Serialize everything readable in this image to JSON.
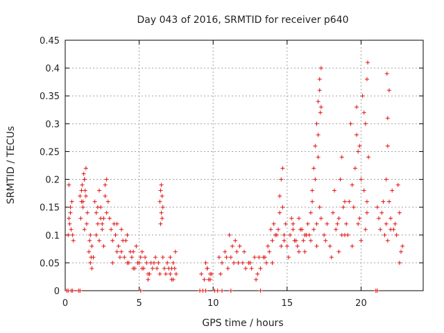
{
  "chart_data": {
    "type": "scatter",
    "title": "Day 043 of 2016, SRMTID for receiver p640",
    "xlabel": "GPS time / hours",
    "ylabel": "SRMTID / TECUs",
    "xlim": [
      0,
      24.2
    ],
    "ylim": [
      0,
      0.45
    ],
    "x_ticks": [
      0,
      5,
      10,
      15,
      20
    ],
    "y_ticks": [
      0,
      0.05,
      0.1,
      0.15,
      0.2,
      0.25,
      0.3,
      0.35,
      0.4,
      0.45
    ],
    "x_tick_labels": [
      "0",
      "5",
      "10",
      "15",
      "20"
    ],
    "y_tick_labels": [
      "0",
      "0.05",
      "0.1",
      "0.15",
      "0.2",
      "0.25",
      "0.3",
      "0.35",
      "0.4",
      "0.45"
    ],
    "grid": true,
    "marker": "+",
    "color": "#e01010",
    "series": [
      {
        "name": "SRMTID",
        "x": [
          0.2,
          0.25,
          0.3,
          0.35,
          0.4,
          0.45,
          0.5,
          0.55,
          0.25,
          0.35,
          1.0,
          1.1,
          1.2,
          1.3,
          1.4,
          1.5,
          1.05,
          1.15,
          1.25,
          1.35,
          1.45,
          1.2,
          1.3,
          1.4,
          1.1,
          1.3,
          1.6,
          1.7,
          1.8,
          1.9,
          1.7,
          1.8,
          1.65,
          1.75,
          2.0,
          2.1,
          2.2,
          2.3,
          2.4,
          2.5,
          2.6,
          2.7,
          2.8,
          2.9,
          2.1,
          2.3,
          2.5,
          2.7,
          2.2,
          2.4,
          2.6,
          2.8,
          3.0,
          3.1,
          3.2,
          3.3,
          3.4,
          3.5,
          3.6,
          3.7,
          3.8,
          3.9,
          3.2,
          3.5,
          3.8,
          4.0,
          4.2,
          4.4,
          4.6,
          4.8,
          4.1,
          4.3,
          4.5,
          4.7,
          4.9,
          4.2,
          4.6,
          5.0,
          5.2,
          5.4,
          5.6,
          5.8,
          5.1,
          5.3,
          5.5,
          5.7,
          5.9,
          5.2,
          5.6,
          6.0,
          6.2,
          6.4,
          6.1,
          6.3,
          6.4,
          6.45,
          6.5,
          6.55,
          6.6,
          6.5,
          6.45,
          6.55,
          6.6,
          6.7,
          6.8,
          6.9,
          7.0,
          7.1,
          7.2,
          7.3,
          7.4,
          7.5,
          7.1,
          7.3,
          7.45,
          7.2,
          9.2,
          9.4,
          9.6,
          9.8,
          9.5,
          9.7,
          9.9,
          9.6,
          9.8,
          10.4,
          10.6,
          10.8,
          11.0,
          11.2,
          11.4,
          11.6,
          11.8,
          12.0,
          12.2,
          10.5,
          10.9,
          11.3,
          11.7,
          12.1,
          11.1,
          11.5,
          12.4,
          12.6,
          12.8,
          13.0,
          13.2,
          12.5,
          12.9,
          13.1,
          13.4,
          13.6,
          13.8,
          14.0,
          14.2,
          13.5,
          13.9,
          14.1,
          14.3,
          13.7,
          14.0,
          14.4,
          14.5,
          14.6,
          14.7,
          14.8,
          14.9,
          14.5,
          14.7,
          14.6,
          14.8,
          15.0,
          15.2,
          15.4,
          15.6,
          15.8,
          16.0,
          16.2,
          16.4,
          15.1,
          15.5,
          15.9,
          16.3,
          15.3,
          15.7,
          16.1,
          15.4,
          15.8,
          16.2,
          16.5,
          16.6,
          16.7,
          16.8,
          16.9,
          17.0,
          17.1,
          17.2,
          17.3,
          16.7,
          16.9,
          17.1,
          17.2,
          17.3,
          17.25,
          17.0,
          17.1,
          17.2,
          16.8,
          17.0,
          17.3,
          16.6,
          17.5,
          17.7,
          17.9,
          18.1,
          18.3,
          18.5,
          18.7,
          18.9,
          17.6,
          18.0,
          18.4,
          18.8,
          18.2,
          18.6,
          18.7,
          18.9,
          18.5,
          19.0,
          19.2,
          19.4,
          19.6,
          19.8,
          20.0,
          20.2,
          20.4,
          19.1,
          19.5,
          19.9,
          20.3,
          19.3,
          19.7,
          20.1,
          19.7,
          19.9,
          20.2,
          20.3,
          20.4,
          20.45,
          20.5,
          20.4,
          19.8,
          20.0,
          19.4,
          21.1,
          21.2,
          21.3,
          21.4,
          21.6,
          21.7,
          21.8,
          21.9,
          22.0,
          22.2,
          22.4,
          22.6,
          22.8,
          21.7,
          21.8,
          21.9,
          21.75,
          21.8,
          22.1,
          22.5,
          22.7,
          22.3,
          22.6,
          21.5,
          22.0
        ],
        "y": [
          0.1,
          0.13,
          0.12,
          0.15,
          0.11,
          0.16,
          0.1,
          0.09,
          0.19,
          0.14,
          0.17,
          0.18,
          0.16,
          0.2,
          0.22,
          0.14,
          0.13,
          0.19,
          0.21,
          0.18,
          0.12,
          0.15,
          0.2,
          0.17,
          0.16,
          0.11,
          0.07,
          0.05,
          0.08,
          0.06,
          0.1,
          0.04,
          0.09,
          0.06,
          0.16,
          0.14,
          0.12,
          0.18,
          0.15,
          0.11,
          0.13,
          0.19,
          0.2,
          0.16,
          0.1,
          0.09,
          0.12,
          0.17,
          0.15,
          0.13,
          0.08,
          0.14,
          0.13,
          0.11,
          0.09,
          0.12,
          0.1,
          0.07,
          0.08,
          0.06,
          0.11,
          0.09,
          0.05,
          0.12,
          0.07,
          0.06,
          0.05,
          0.07,
          0.04,
          0.08,
          0.09,
          0.05,
          0.06,
          0.04,
          0.05,
          0.1,
          0.07,
          0.05,
          0.04,
          0.06,
          0.03,
          0.05,
          0.06,
          0.04,
          0.05,
          0.03,
          0.04,
          0.07,
          0.02,
          0.05,
          0.04,
          0.03,
          0.06,
          0.05,
          0.16,
          0.18,
          0.14,
          0.17,
          0.15,
          0.19,
          0.12,
          0.13,
          0.06,
          0.04,
          0.03,
          0.05,
          0.04,
          0.03,
          0.02,
          0.05,
          0.04,
          0.03,
          0.06,
          0.02,
          0.07,
          0.04,
          0.03,
          0.02,
          0.04,
          0.03,
          0.05,
          0.02,
          0.03,
          0.04,
          0.02,
          0.06,
          0.05,
          0.07,
          0.04,
          0.06,
          0.05,
          0.07,
          0.08,
          0.05,
          0.04,
          0.03,
          0.06,
          0.08,
          0.05,
          0.07,
          0.1,
          0.09,
          0.05,
          0.04,
          0.06,
          0.03,
          0.04,
          0.05,
          0.02,
          0.06,
          0.06,
          0.05,
          0.07,
          0.09,
          0.1,
          0.06,
          0.11,
          0.12,
          0.1,
          0.08,
          0.05,
          0.11,
          0.14,
          0.2,
          0.22,
          0.09,
          0.12,
          0.17,
          0.15,
          0.08,
          0.1,
          0.08,
          0.1,
          0.12,
          0.09,
          0.07,
          0.11,
          0.1,
          0.12,
          0.06,
          0.09,
          0.11,
          0.1,
          0.13,
          0.08,
          0.09,
          0.11,
          0.13,
          0.07,
          0.1,
          0.14,
          0.18,
          0.22,
          0.26,
          0.3,
          0.34,
          0.38,
          0.4,
          0.16,
          0.2,
          0.28,
          0.36,
          0.33,
          0.32,
          0.12,
          0.24,
          0.15,
          0.11,
          0.08,
          0.13,
          0.09,
          0.1,
          0.12,
          0.08,
          0.14,
          0.11,
          0.13,
          0.1,
          0.16,
          0.09,
          0.06,
          0.12,
          0.15,
          0.18,
          0.2,
          0.24,
          0.1,
          0.07,
          0.12,
          0.16,
          0.19,
          0.22,
          0.25,
          0.2,
          0.18,
          0.14,
          0.1,
          0.15,
          0.13,
          0.11,
          0.3,
          0.33,
          0.35,
          0.28,
          0.26,
          0.32,
          0.3,
          0.38,
          0.41,
          0.24,
          0.16,
          0.12,
          0.09,
          0.08,
          0.15,
          0.13,
          0.11,
          0.14,
          0.1,
          0.12,
          0.09,
          0.16,
          0.13,
          0.11,
          0.1,
          0.14,
          0.08,
          0.2,
          0.31,
          0.36,
          0.39,
          0.26,
          0.18,
          0.19,
          0.07,
          0.12,
          0.05,
          0.16,
          0.11
        ]
      }
    ],
    "baseline_points_x": [
      0.1,
      0.2,
      0.4,
      0.5,
      0.9,
      1.0,
      5.1,
      9.1,
      9.3,
      9.5,
      10.1,
      10.3,
      10.6,
      11.2,
      13.2,
      21.0,
      21.1
    ]
  }
}
